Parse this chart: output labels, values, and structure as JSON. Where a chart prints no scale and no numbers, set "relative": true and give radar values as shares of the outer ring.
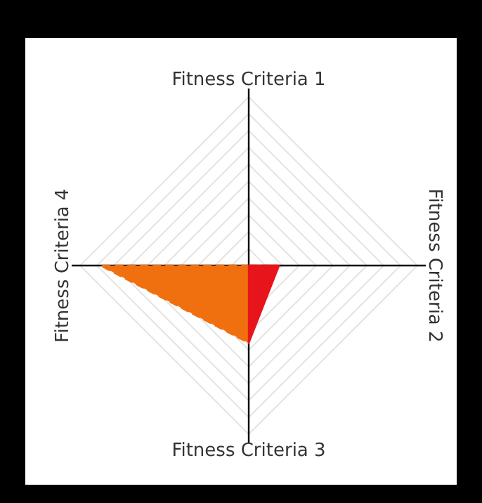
{
  "chart_data": {
    "type": "radar",
    "relative": true,
    "categories": [
      "Fitness Criteria 1",
      "Fitness Criteria 2",
      "Fitness Criteria 3",
      "Fitness Criteria 4"
    ],
    "series": [
      {
        "color": "#f07010",
        "values": [
          0,
          0.16,
          0.46,
          0.88
        ],
        "line_style": "dashed"
      },
      {
        "color": "#e8141c",
        "values": [
          0,
          0.18,
          0.46,
          0
        ]
      }
    ]
  }
}
